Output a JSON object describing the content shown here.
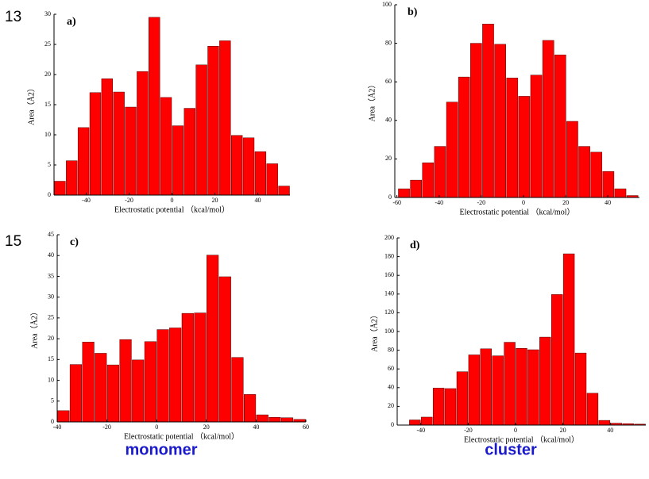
{
  "row_labels": [
    "13",
    "15"
  ],
  "column_labels": [
    "monomer",
    "cluster"
  ],
  "chart_data": [
    {
      "type": "histogram",
      "label": "a)",
      "xlabel": "Electrostatic potential （kcal/mol）",
      "ylabel": "Area（Å2）",
      "color": "#ff0000",
      "bins": [
        -55,
        -49.5,
        -44,
        -38.5,
        -33,
        -27.5,
        -22,
        -16.5,
        -11,
        -5.5,
        0,
        5.5,
        11,
        16.5,
        22,
        27.5,
        33,
        38.5,
        44,
        49.5,
        55
      ],
      "values": [
        2.3,
        5.7,
        11.2,
        17,
        19.3,
        17.1,
        14.6,
        20.5,
        29.5,
        16.2,
        11.5,
        14.4,
        21.6,
        24.7,
        25.6,
        9.9,
        9.5,
        7.2,
        5.2,
        1.5
      ],
      "xlim": [
        -55,
        55
      ],
      "xticks": [
        -40,
        -20,
        0,
        20,
        40
      ],
      "ylim": [
        0,
        30
      ],
      "yticks": [
        0,
        5,
        10,
        15,
        20,
        25,
        30
      ]
    },
    {
      "type": "histogram",
      "label": "b)",
      "xlabel": "Electrostatic potential （kcal/mol）",
      "ylabel": "Area（Å2）",
      "color": "#ff0000",
      "bins": [
        -59.5,
        -53.8,
        -48.1,
        -42.4,
        -36.7,
        -31,
        -25.3,
        -19.6,
        -13.9,
        -8.2,
        -2.5,
        3.2,
        8.9,
        14.6,
        20.3,
        26,
        31.7,
        37.4,
        43.1,
        48.8,
        54.5
      ],
      "values": [
        4.5,
        9,
        18,
        26.5,
        49.5,
        62.5,
        80,
        90,
        79.5,
        62,
        52.5,
        63.5,
        81.5,
        74,
        39.5,
        26.5,
        23.5,
        13.5,
        4.5,
        1
      ],
      "xlim": [
        -61,
        55
      ],
      "xticks": [
        -60,
        -40,
        -20,
        0,
        20,
        40
      ],
      "ylim": [
        0,
        100
      ],
      "yticks": [
        0,
        20,
        40,
        60,
        80,
        100
      ]
    },
    {
      "type": "histogram",
      "label": "c)",
      "xlabel": "Electrostatic potential （kcal/mol）",
      "ylabel": "Area（Å2）",
      "color": "#ff0000",
      "bins": [
        -40,
        -35,
        -30,
        -25,
        -20,
        -15,
        -10,
        -5,
        0,
        5,
        10,
        15,
        20,
        25,
        30,
        35,
        40,
        45,
        50,
        55,
        60
      ],
      "values": [
        2.7,
        13.8,
        19.2,
        16.5,
        13.7,
        19.8,
        14.9,
        19.3,
        22.2,
        22.6,
        26.1,
        26.2,
        40.1,
        34.9,
        15.5,
        6.6,
        1.7,
        1.1,
        1.0,
        0.6
      ],
      "xlim": [
        -40,
        60
      ],
      "xticks": [
        -40,
        -20,
        0,
        20,
        40,
        60
      ],
      "ylim": [
        0,
        45
      ],
      "yticks": [
        0,
        5,
        10,
        15,
        20,
        25,
        30,
        35,
        40,
        45
      ]
    },
    {
      "type": "histogram",
      "label": "d)",
      "xlabel": "Electrostatic potential （kcal/mol）",
      "ylabel": "Area（Å2）",
      "color": "#ff0000",
      "bins": [
        -45,
        -40,
        -35,
        -30,
        -25,
        -20,
        -15,
        -10,
        -5,
        0,
        5,
        10,
        15,
        20,
        25,
        30,
        35,
        40,
        45,
        50,
        55
      ],
      "values": [
        5.5,
        8.5,
        39.5,
        39,
        57,
        75,
        81.5,
        74,
        88.5,
        82,
        80.5,
        94,
        139.5,
        183,
        77,
        34,
        5,
        2,
        1.5,
        1
      ],
      "xlim": [
        -50,
        55
      ],
      "xticks": [
        -40,
        -20,
        0,
        20,
        40
      ],
      "ylim": [
        0,
        200
      ],
      "yticks": [
        0,
        20,
        40,
        60,
        80,
        100,
        120,
        140,
        160,
        180,
        200
      ]
    }
  ]
}
